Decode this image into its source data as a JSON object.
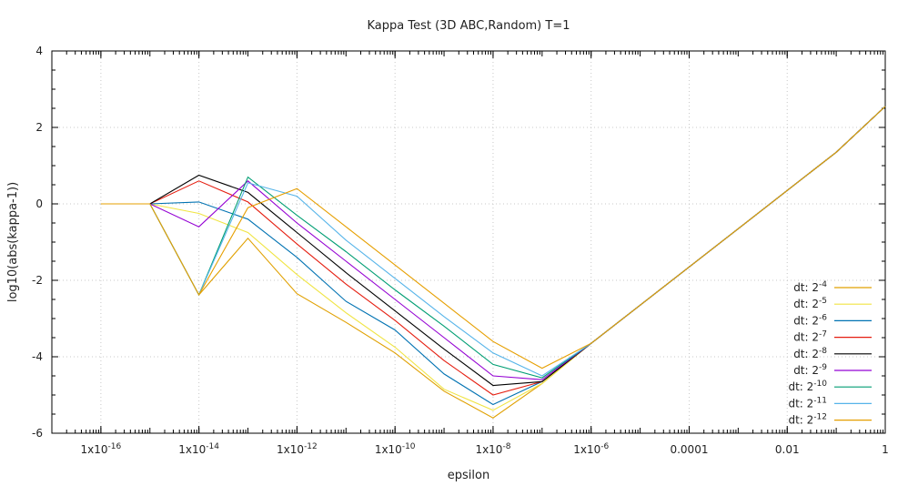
{
  "chart_data": {
    "type": "line",
    "title": "Kappa Test (3D ABC,Random) T=1",
    "xlabel": "epsilon",
    "ylabel": "log10(abs(kappa-1))",
    "xscale": "log",
    "xlim": [
      1e-17,
      1
    ],
    "ylim": [
      -6,
      4
    ],
    "grid": true,
    "legend_position": "bottom-right",
    "yticks": [
      "4",
      "2",
      "0",
      "-2",
      "-4",
      "-6"
    ],
    "xticks": [
      {
        "value": 1e-16,
        "base": "1x10",
        "exp": "-16"
      },
      {
        "value": 1e-14,
        "base": "1x10",
        "exp": "-14"
      },
      {
        "value": 1e-12,
        "base": "1x10",
        "exp": "-12"
      },
      {
        "value": 1e-10,
        "base": "1x10",
        "exp": "-10"
      },
      {
        "value": 1e-08,
        "base": "1x10",
        "exp": "-8"
      },
      {
        "value": 1e-06,
        "base": "1x10",
        "exp": "-6"
      },
      {
        "value": 0.0001,
        "base": "0.0001",
        "exp": ""
      },
      {
        "value": 0.01,
        "base": "0.01",
        "exp": ""
      },
      {
        "value": 1,
        "base": "1",
        "exp": ""
      }
    ],
    "x": [
      1e-16,
      1e-15,
      1e-14,
      1e-13,
      1e-12,
      1e-11,
      1e-10,
      1e-09,
      1e-08,
      1e-07,
      1e-06,
      1e-05,
      0.0001,
      0.001,
      0.01,
      0.1,
      1
    ],
    "series": [
      {
        "name_base": "dt: 2",
        "name_exp": "-4",
        "color": "#e0a000",
        "values": [
          0,
          0,
          -2.38,
          -0.9,
          -2.35,
          -3.1,
          -3.9,
          -4.9,
          -5.6,
          -4.7,
          -3.65,
          -2.65,
          -1.65,
          -0.65,
          0.35,
          1.35,
          2.55
        ]
      },
      {
        "name_base": "dt: 2",
        "name_exp": "-5",
        "color": "#f0e442",
        "values": [
          0,
          0,
          -0.25,
          -0.75,
          -1.85,
          -2.85,
          -3.75,
          -4.85,
          -5.4,
          -4.7,
          -3.65,
          -2.65,
          -1.65,
          -0.65,
          0.35,
          1.35,
          2.55
        ]
      },
      {
        "name_base": "dt: 2",
        "name_exp": "-6",
        "color": "#0072b2",
        "values": [
          0,
          0,
          0.05,
          -0.4,
          -1.4,
          -2.55,
          -3.3,
          -4.45,
          -5.25,
          -4.65,
          -3.65,
          -2.65,
          -1.65,
          -0.65,
          0.35,
          1.35,
          2.55
        ]
      },
      {
        "name_base": "dt: 2",
        "name_exp": "-7",
        "color": "#e51e10",
        "values": [
          0,
          0,
          0.6,
          0.05,
          -1.05,
          -2.1,
          -3.05,
          -4.1,
          -5.0,
          -4.65,
          -3.65,
          -2.65,
          -1.65,
          -0.65,
          0.35,
          1.35,
          2.55
        ]
      },
      {
        "name_base": "dt: 2",
        "name_exp": "-8",
        "color": "#000000",
        "values": [
          0,
          0,
          0.75,
          0.3,
          -0.75,
          -1.8,
          -2.8,
          -3.8,
          -4.75,
          -4.65,
          -3.65,
          -2.65,
          -1.65,
          -0.65,
          0.35,
          1.35,
          2.55
        ]
      },
      {
        "name_base": "dt: 2",
        "name_exp": "-9",
        "color": "#9400d3",
        "values": [
          0,
          0,
          -0.6,
          0.6,
          -0.5,
          -1.5,
          -2.5,
          -3.5,
          -4.5,
          -4.6,
          -3.65,
          -2.65,
          -1.65,
          -0.65,
          0.35,
          1.35,
          2.55
        ]
      },
      {
        "name_base": "dt: 2",
        "name_exp": "-10",
        "color": "#009e73",
        "values": [
          0,
          0,
          -2.38,
          0.7,
          -0.3,
          -1.25,
          -2.25,
          -3.2,
          -4.2,
          -4.55,
          -3.65,
          -2.65,
          -1.65,
          -0.65,
          0.35,
          1.35,
          2.55
        ]
      },
      {
        "name_base": "dt: 2",
        "name_exp": "-11",
        "color": "#56b4e9",
        "values": [
          0,
          0,
          -2.38,
          0.55,
          0.2,
          -0.95,
          -1.95,
          -2.95,
          -3.9,
          -4.5,
          -3.65,
          -2.65,
          -1.65,
          -0.65,
          0.35,
          1.35,
          2.55
        ]
      },
      {
        "name_base": "dt: 2",
        "name_exp": "-12",
        "color": "#e69f00",
        "values": [
          0,
          0,
          -2.38,
          -0.1,
          0.4,
          -0.6,
          -1.6,
          -2.6,
          -3.6,
          -4.3,
          -3.65,
          -2.65,
          -1.65,
          -0.65,
          0.35,
          1.35,
          2.55
        ]
      }
    ]
  }
}
